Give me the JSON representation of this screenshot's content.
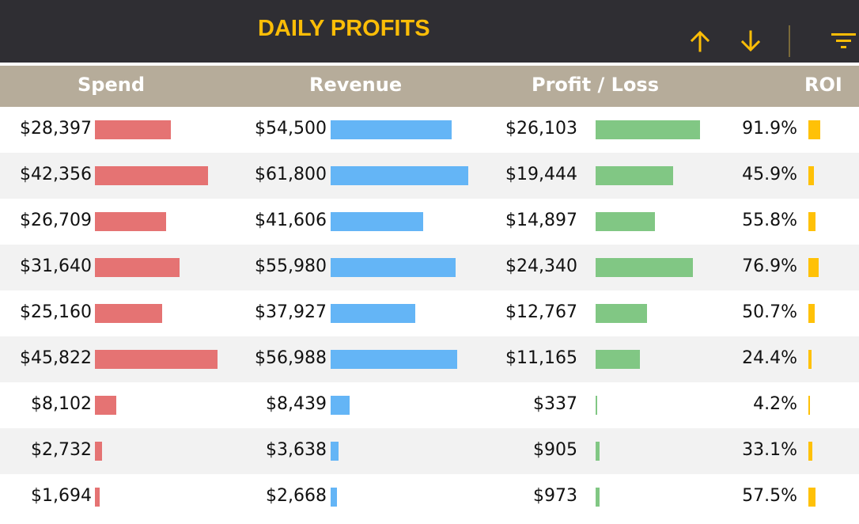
{
  "header": {
    "title": "DAILY PROFITS",
    "buttons": {
      "sort_ascending_icon": "arrow-up-icon",
      "sort_descending_icon": "arrow-down-icon",
      "filter_icon": "filter-icon"
    }
  },
  "columns": [
    "Spend",
    "Revenue",
    "Profit / Loss",
    "ROI"
  ],
  "colors": {
    "topbar": "#2f2e33",
    "accent": "#fbbd07",
    "header": "#b6ac9a",
    "spend": "#e57373",
    "revenue": "#64b5f6",
    "profit": "#81c784",
    "roi": "#ffc107"
  },
  "rows": [
    {
      "spend": "$28,397",
      "revenue": "$54,500",
      "profit": "$26,103",
      "roi": "91.9%",
      "spend_v": 28397,
      "revenue_v": 54500,
      "profit_v": 26103,
      "roi_v": 91.9
    },
    {
      "spend": "$42,356",
      "revenue": "$61,800",
      "profit": "$19,444",
      "roi": "45.9%",
      "spend_v": 42356,
      "revenue_v": 61800,
      "profit_v": 19444,
      "roi_v": 45.9
    },
    {
      "spend": "$26,709",
      "revenue": "$41,606",
      "profit": "$14,897",
      "roi": "55.8%",
      "spend_v": 26709,
      "revenue_v": 41606,
      "profit_v": 14897,
      "roi_v": 55.8
    },
    {
      "spend": "$31,640",
      "revenue": "$55,980",
      "profit": "$24,340",
      "roi": "76.9%",
      "spend_v": 31640,
      "revenue_v": 55980,
      "profit_v": 24340,
      "roi_v": 76.9
    },
    {
      "spend": "$25,160",
      "revenue": "$37,927",
      "profit": "$12,767",
      "roi": "50.7%",
      "spend_v": 25160,
      "revenue_v": 37927,
      "profit_v": 12767,
      "roi_v": 50.7
    },
    {
      "spend": "$45,822",
      "revenue": "$56,988",
      "profit": "$11,165",
      "roi": "24.4%",
      "spend_v": 45822,
      "revenue_v": 56988,
      "profit_v": 11165,
      "roi_v": 24.4
    },
    {
      "spend": "$8,102",
      "revenue": "$8,439",
      "profit": "$337",
      "roi": "4.2%",
      "spend_v": 8102,
      "revenue_v": 8439,
      "profit_v": 337,
      "roi_v": 4.2
    },
    {
      "spend": "$2,732",
      "revenue": "$3,638",
      "profit": "$905",
      "roi": "33.1%",
      "spend_v": 2732,
      "revenue_v": 3638,
      "profit_v": 905,
      "roi_v": 33.1
    },
    {
      "spend": "$1,694",
      "revenue": "$2,668",
      "profit": "$973",
      "roi": "57.5%",
      "spend_v": 1694,
      "revenue_v": 2668,
      "profit_v": 973,
      "roi_v": 57.5
    }
  ]
}
